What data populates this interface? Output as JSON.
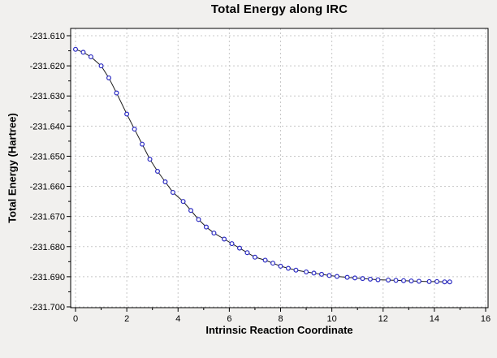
{
  "chart_data": {
    "type": "line",
    "title": "Total Energy along IRC",
    "xlabel": "Intrinsic Reaction Coordinate",
    "ylabel": "Total Energy (Hartree)",
    "xlim": [
      0,
      16
    ],
    "ylim": [
      -231.7,
      -231.61
    ],
    "grid": "dashed",
    "legend": "none",
    "marker": "open-circle",
    "xticks_major": [
      0,
      2,
      4,
      6,
      8,
      10,
      12,
      14,
      16
    ],
    "xticks_minor": [
      1,
      3,
      5,
      7,
      9,
      11,
      13,
      15
    ],
    "yticks": [
      {
        "v": -231.61,
        "label": "-231.610"
      },
      {
        "v": -231.62,
        "label": "-231.620"
      },
      {
        "v": -231.63,
        "label": "-231.630"
      },
      {
        "v": -231.64,
        "label": "-231.640"
      },
      {
        "v": -231.65,
        "label": "-231.650"
      },
      {
        "v": -231.66,
        "label": "-231.660"
      },
      {
        "v": -231.67,
        "label": "-231.670"
      },
      {
        "v": -231.68,
        "label": "-231.680"
      },
      {
        "v": -231.69,
        "label": "-231.690"
      },
      {
        "v": -231.7,
        "label": "-231.700"
      }
    ],
    "x": [
      0,
      0.3,
      0.6,
      1.0,
      1.3,
      1.6,
      2.0,
      2.3,
      2.6,
      2.9,
      3.2,
      3.5,
      3.8,
      4.2,
      4.5,
      4.8,
      5.1,
      5.4,
      5.8,
      6.1,
      6.4,
      6.7,
      7.0,
      7.4,
      7.7,
      8.0,
      8.3,
      8.6,
      9.0,
      9.3,
      9.6,
      9.9,
      10.2,
      10.6,
      10.9,
      11.2,
      11.5,
      11.8,
      12.2,
      12.5,
      12.8,
      13.1,
      13.4,
      13.8,
      14.1,
      14.4,
      14.6
    ],
    "y": [
      -231.6145,
      -231.6155,
      -231.617,
      -231.62,
      -231.624,
      -231.629,
      -231.636,
      -231.641,
      -231.646,
      -231.651,
      -231.655,
      -231.6585,
      -231.662,
      -231.665,
      -231.668,
      -231.671,
      -231.6735,
      -231.6755,
      -231.6775,
      -231.679,
      -231.6805,
      -231.682,
      -231.6835,
      -231.6845,
      -231.6855,
      -231.6865,
      -231.6872,
      -231.6878,
      -231.6884,
      -231.6888,
      -231.6892,
      -231.6896,
      -231.6899,
      -231.6902,
      -231.6904,
      -231.6906,
      -231.6908,
      -231.691,
      -231.6911,
      -231.6912,
      -231.6913,
      -231.6914,
      -231.6915,
      -231.6916,
      -231.6916,
      -231.6917,
      -231.6917
    ],
    "colors": {
      "marker": "#2a2ac2",
      "line": "#1c1c1c",
      "grid": "#c8c8c8",
      "plot_background": "#ffffff",
      "page_background": "#f1f0ee",
      "border": "#000000"
    }
  }
}
